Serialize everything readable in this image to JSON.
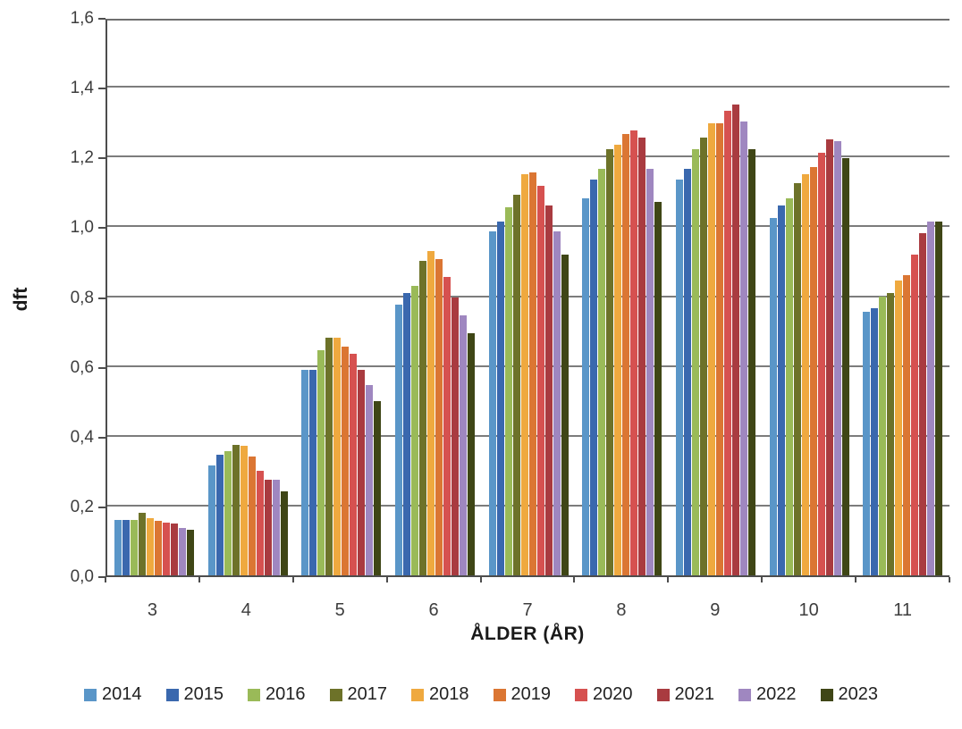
{
  "chart_data": {
    "type": "bar",
    "title": "",
    "xlabel": "ÅLDER (ÅR)",
    "ylabel": "dft",
    "categories": [
      "3",
      "4",
      "5",
      "6",
      "7",
      "8",
      "9",
      "10",
      "11"
    ],
    "y_ticks": [
      "0,0",
      "0,2",
      "0,4",
      "0,6",
      "0,8",
      "1,0",
      "1,2",
      "1,4",
      "1,6"
    ],
    "ylim": [
      0,
      1.6
    ],
    "grid": true,
    "legend_position": "bottom",
    "series": [
      {
        "name": "2014",
        "color": "#5a96c8",
        "values": [
          0.16,
          0.315,
          0.59,
          0.775,
          0.985,
          1.08,
          1.135,
          1.025,
          0.755
        ]
      },
      {
        "name": "2015",
        "color": "#3a68ae",
        "values": [
          0.16,
          0.345,
          0.59,
          0.81,
          1.015,
          1.135,
          1.165,
          1.06,
          0.765
        ]
      },
      {
        "name": "2016",
        "color": "#9aba58",
        "values": [
          0.16,
          0.355,
          0.645,
          0.83,
          1.055,
          1.165,
          1.22,
          1.08,
          0.8
        ]
      },
      {
        "name": "2017",
        "color": "#6d7229",
        "values": [
          0.18,
          0.375,
          0.68,
          0.9,
          1.09,
          1.22,
          1.255,
          1.125,
          0.81
        ]
      },
      {
        "name": "2018",
        "color": "#efa93f",
        "values": [
          0.165,
          0.37,
          0.68,
          0.93,
          1.15,
          1.235,
          1.295,
          1.15,
          0.845
        ]
      },
      {
        "name": "2019",
        "color": "#db7633",
        "values": [
          0.155,
          0.34,
          0.655,
          0.905,
          1.155,
          1.265,
          1.295,
          1.17,
          0.86
        ]
      },
      {
        "name": "2020",
        "color": "#d65150",
        "values": [
          0.15,
          0.3,
          0.635,
          0.855,
          1.115,
          1.275,
          1.33,
          1.21,
          0.92
        ]
      },
      {
        "name": "2021",
        "color": "#a93b40",
        "values": [
          0.148,
          0.275,
          0.59,
          0.795,
          1.06,
          1.255,
          1.35,
          1.25,
          0.98
        ]
      },
      {
        "name": "2022",
        "color": "#9f87c0",
        "values": [
          0.135,
          0.275,
          0.545,
          0.745,
          0.985,
          1.165,
          1.3,
          1.245,
          1.015
        ]
      },
      {
        "name": "2023",
        "color": "#3f4616",
        "values": [
          0.13,
          0.24,
          0.5,
          0.695,
          0.92,
          1.07,
          1.22,
          1.195,
          1.015
        ]
      }
    ]
  }
}
